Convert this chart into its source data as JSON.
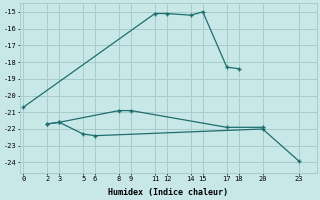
{
  "xlabel": "Humidex (Indice chaleur)",
  "bg_color": "#c8e8e8",
  "grid_color": "#a8cccc",
  "line_color": "#1e6e6e",
  "line1_x": [
    0,
    11,
    12,
    14,
    15,
    17,
    18
  ],
  "line1_y": [
    -20.7,
    -15.1,
    -15.1,
    -15.2,
    -15.0,
    -18.3,
    -18.4
  ],
  "line2_x": [
    2,
    3,
    8,
    9,
    17,
    20
  ],
  "line2_y": [
    -21.7,
    -21.6,
    -20.9,
    -20.9,
    -21.9,
    -21.9
  ],
  "line3_x": [
    2,
    3,
    5,
    6,
    20,
    23
  ],
  "line3_y": [
    -21.7,
    -21.6,
    -22.3,
    -22.4,
    -22.0,
    -23.9
  ],
  "xticks": [
    0,
    2,
    3,
    5,
    6,
    8,
    9,
    11,
    12,
    14,
    15,
    17,
    18,
    20,
    23
  ],
  "yticks": [
    -15,
    -16,
    -17,
    -18,
    -19,
    -20,
    -21,
    -22,
    -23,
    -24
  ],
  "xlim": [
    -0.3,
    24.5
  ],
  "ylim": [
    -24.6,
    -14.5
  ],
  "marker": "+"
}
